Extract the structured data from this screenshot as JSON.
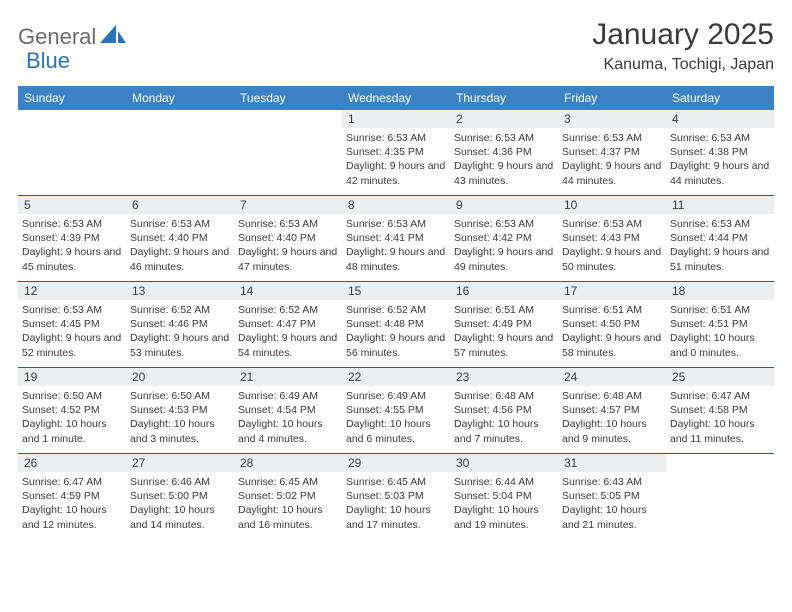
{
  "brand": {
    "part1": "General",
    "part2": "Blue"
  },
  "header": {
    "title": "January 2025",
    "location": "Kanuma, Tochigi, Japan"
  },
  "colors": {
    "header_bg": "#3b82c4",
    "header_text": "#ffffff",
    "daynum_bg": "#eceeef",
    "text": "#3a3a3a",
    "rule": "#2a5a8a",
    "brand_gray": "#6a6a6a",
    "brand_blue": "#2b73b8"
  },
  "weekdays": [
    "Sunday",
    "Monday",
    "Tuesday",
    "Wednesday",
    "Thursday",
    "Friday",
    "Saturday"
  ],
  "weeks": [
    [
      null,
      null,
      null,
      {
        "d": "1",
        "sr": "6:53 AM",
        "ss": "4:35 PM",
        "dl": "9 hours and 42 minutes."
      },
      {
        "d": "2",
        "sr": "6:53 AM",
        "ss": "4:36 PM",
        "dl": "9 hours and 43 minutes."
      },
      {
        "d": "3",
        "sr": "6:53 AM",
        "ss": "4:37 PM",
        "dl": "9 hours and 44 minutes."
      },
      {
        "d": "4",
        "sr": "6:53 AM",
        "ss": "4:38 PM",
        "dl": "9 hours and 44 minutes."
      }
    ],
    [
      {
        "d": "5",
        "sr": "6:53 AM",
        "ss": "4:39 PM",
        "dl": "9 hours and 45 minutes."
      },
      {
        "d": "6",
        "sr": "6:53 AM",
        "ss": "4:40 PM",
        "dl": "9 hours and 46 minutes."
      },
      {
        "d": "7",
        "sr": "6:53 AM",
        "ss": "4:40 PM",
        "dl": "9 hours and 47 minutes."
      },
      {
        "d": "8",
        "sr": "6:53 AM",
        "ss": "4:41 PM",
        "dl": "9 hours and 48 minutes."
      },
      {
        "d": "9",
        "sr": "6:53 AM",
        "ss": "4:42 PM",
        "dl": "9 hours and 49 minutes."
      },
      {
        "d": "10",
        "sr": "6:53 AM",
        "ss": "4:43 PM",
        "dl": "9 hours and 50 minutes."
      },
      {
        "d": "11",
        "sr": "6:53 AM",
        "ss": "4:44 PM",
        "dl": "9 hours and 51 minutes."
      }
    ],
    [
      {
        "d": "12",
        "sr": "6:53 AM",
        "ss": "4:45 PM",
        "dl": "9 hours and 52 minutes."
      },
      {
        "d": "13",
        "sr": "6:52 AM",
        "ss": "4:46 PM",
        "dl": "9 hours and 53 minutes."
      },
      {
        "d": "14",
        "sr": "6:52 AM",
        "ss": "4:47 PM",
        "dl": "9 hours and 54 minutes."
      },
      {
        "d": "15",
        "sr": "6:52 AM",
        "ss": "4:48 PM",
        "dl": "9 hours and 56 minutes."
      },
      {
        "d": "16",
        "sr": "6:51 AM",
        "ss": "4:49 PM",
        "dl": "9 hours and 57 minutes."
      },
      {
        "d": "17",
        "sr": "6:51 AM",
        "ss": "4:50 PM",
        "dl": "9 hours and 58 minutes."
      },
      {
        "d": "18",
        "sr": "6:51 AM",
        "ss": "4:51 PM",
        "dl": "10 hours and 0 minutes."
      }
    ],
    [
      {
        "d": "19",
        "sr": "6:50 AM",
        "ss": "4:52 PM",
        "dl": "10 hours and 1 minute."
      },
      {
        "d": "20",
        "sr": "6:50 AM",
        "ss": "4:53 PM",
        "dl": "10 hours and 3 minutes."
      },
      {
        "d": "21",
        "sr": "6:49 AM",
        "ss": "4:54 PM",
        "dl": "10 hours and 4 minutes."
      },
      {
        "d": "22",
        "sr": "6:49 AM",
        "ss": "4:55 PM",
        "dl": "10 hours and 6 minutes."
      },
      {
        "d": "23",
        "sr": "6:48 AM",
        "ss": "4:56 PM",
        "dl": "10 hours and 7 minutes."
      },
      {
        "d": "24",
        "sr": "6:48 AM",
        "ss": "4:57 PM",
        "dl": "10 hours and 9 minutes."
      },
      {
        "d": "25",
        "sr": "6:47 AM",
        "ss": "4:58 PM",
        "dl": "10 hours and 11 minutes."
      }
    ],
    [
      {
        "d": "26",
        "sr": "6:47 AM",
        "ss": "4:59 PM",
        "dl": "10 hours and 12 minutes."
      },
      {
        "d": "27",
        "sr": "6:46 AM",
        "ss": "5:00 PM",
        "dl": "10 hours and 14 minutes."
      },
      {
        "d": "28",
        "sr": "6:45 AM",
        "ss": "5:02 PM",
        "dl": "10 hours and 16 minutes."
      },
      {
        "d": "29",
        "sr": "6:45 AM",
        "ss": "5:03 PM",
        "dl": "10 hours and 17 minutes."
      },
      {
        "d": "30",
        "sr": "6:44 AM",
        "ss": "5:04 PM",
        "dl": "10 hours and 19 minutes."
      },
      {
        "d": "31",
        "sr": "6:43 AM",
        "ss": "5:05 PM",
        "dl": "10 hours and 21 minutes."
      },
      null
    ]
  ],
  "labels": {
    "sunrise": "Sunrise:",
    "sunset": "Sunset:",
    "daylight": "Daylight:"
  }
}
